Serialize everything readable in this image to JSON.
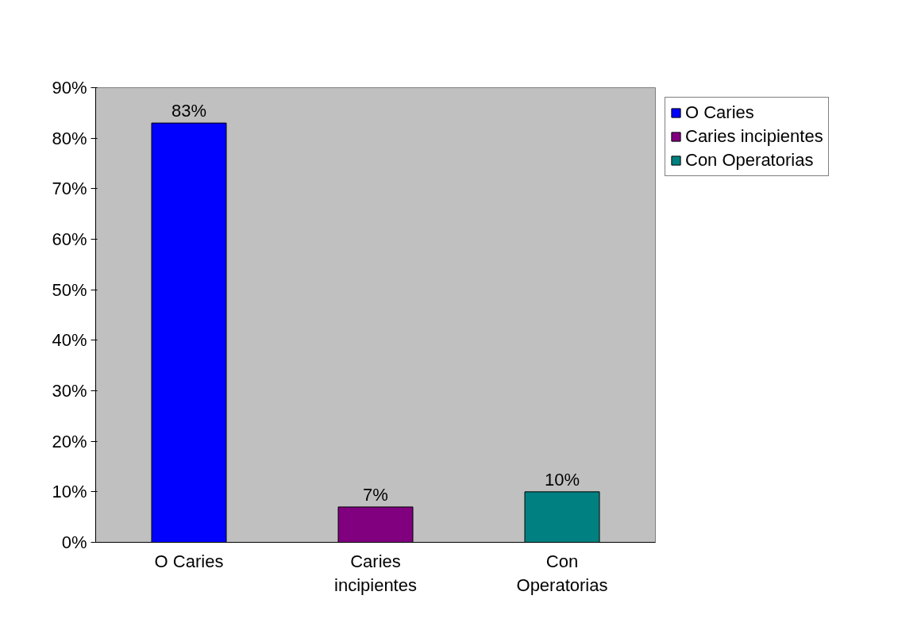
{
  "chart_data": {
    "type": "bar",
    "categories": [
      "O Caries",
      "Caries incipientes",
      "Con Operatorias"
    ],
    "series": [
      {
        "name": "O Caries",
        "color": "#0000ff",
        "values": [
          83,
          null,
          null
        ],
        "value_labels": [
          "83%",
          null,
          null
        ]
      },
      {
        "name": "Caries incipientes",
        "color": "#800080",
        "values": [
          null,
          7,
          null
        ],
        "value_labels": [
          null,
          "7%",
          null
        ]
      },
      {
        "name": "Con Operatorias",
        "color": "#008080",
        "values": [
          null,
          null,
          10
        ],
        "value_labels": [
          null,
          null,
          "10%"
        ]
      }
    ],
    "ylim": [
      0,
      90
    ],
    "yticks": [
      {
        "value": 0,
        "label": "0%"
      },
      {
        "value": 10,
        "label": "10%"
      },
      {
        "value": 20,
        "label": "20%"
      },
      {
        "value": 30,
        "label": "30%"
      },
      {
        "value": 40,
        "label": "40%"
      },
      {
        "value": 50,
        "label": "50%"
      },
      {
        "value": 60,
        "label": "60%"
      },
      {
        "value": 70,
        "label": "70%"
      },
      {
        "value": 80,
        "label": "80%"
      },
      {
        "value": 90,
        "label": "90%"
      }
    ],
    "legend": "right"
  }
}
